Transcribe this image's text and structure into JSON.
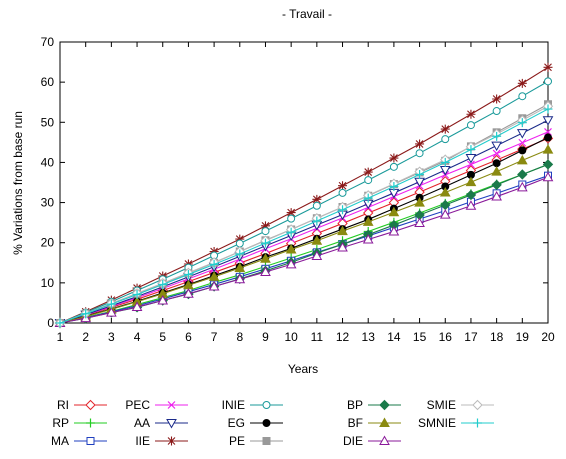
{
  "chart_data": {
    "type": "line",
    "title": "- Travail -",
    "xlabel": "Years",
    "ylabel": "% Variations from base run",
    "x": [
      1,
      2,
      3,
      4,
      5,
      6,
      7,
      8,
      9,
      10,
      11,
      12,
      13,
      14,
      15,
      16,
      17,
      18,
      19,
      20
    ],
    "xlim": [
      1,
      20
    ],
    "ylim": [
      0,
      70
    ],
    "yticks": [
      0,
      10,
      20,
      30,
      40,
      50,
      60,
      70
    ],
    "grid": false,
    "legend_position": "bottom",
    "series": [
      {
        "name": "RI",
        "color": "#e3242b",
        "marker": "diamond-open",
        "values": [
          0,
          1.9,
          3.9,
          5.9,
          8.1,
          10.3,
          12.6,
          14.9,
          17.3,
          19.8,
          22.3,
          24.8,
          27.4,
          30.0,
          32.6,
          35.3,
          38.0,
          40.6,
          43.3,
          46.0
        ]
      },
      {
        "name": "RP",
        "color": "#22cc22",
        "marker": "plus",
        "values": [
          0,
          1.4,
          2.9,
          4.6,
          6.3,
          8.1,
          10.1,
          12.0,
          14.1,
          16.2,
          18.3,
          20.5,
          22.8,
          25.1,
          27.4,
          29.8,
          32.2,
          34.6,
          37.0,
          39.5
        ]
      },
      {
        "name": "MA",
        "color": "#1f3fbf",
        "marker": "square-open",
        "values": [
          0,
          1.3,
          2.8,
          4.3,
          6.0,
          7.8,
          9.6,
          11.5,
          13.5,
          15.5,
          17.6,
          19.6,
          21.7,
          23.8,
          25.9,
          28.0,
          30.2,
          32.3,
          34.5,
          36.7
        ]
      },
      {
        "name": "PEC",
        "color": "#ee22ee",
        "marker": "cross",
        "values": [
          0,
          2.0,
          4.1,
          6.3,
          8.6,
          11.0,
          13.4,
          15.9,
          18.5,
          21.0,
          23.6,
          26.2,
          28.8,
          31.5,
          34.2,
          36.9,
          39.5,
          42.2,
          44.9,
          47.6
        ]
      },
      {
        "name": "AA",
        "color": "#1a2a8a",
        "marker": "triangle-down-open",
        "values": [
          0,
          2.1,
          4.3,
          6.6,
          9.0,
          11.5,
          14.0,
          16.6,
          19.2,
          21.8,
          24.4,
          27.0,
          29.7,
          32.4,
          35.2,
          38.1,
          41.1,
          44.2,
          47.3,
          50.5
        ]
      },
      {
        "name": "IIE",
        "color": "#8b1a1a",
        "marker": "star",
        "values": [
          0,
          2.8,
          5.7,
          8.7,
          11.7,
          14.7,
          17.8,
          20.9,
          24.2,
          27.5,
          30.8,
          34.2,
          37.6,
          41.1,
          44.6,
          48.3,
          52.0,
          55.8,
          59.7,
          63.7
        ]
      },
      {
        "name": "INIE",
        "color": "#1a9a9a",
        "marker": "circle-open",
        "values": [
          0,
          2.6,
          5.3,
          8.1,
          10.9,
          13.8,
          16.8,
          19.8,
          22.9,
          26.0,
          29.2,
          32.4,
          35.6,
          38.9,
          42.3,
          45.8,
          49.3,
          52.8,
          56.5,
          60.2
        ]
      },
      {
        "name": "EG",
        "color": "#000000",
        "marker": "circle-filled",
        "values": [
          0,
          1.7,
          3.5,
          5.4,
          7.5,
          9.6,
          11.8,
          14.0,
          16.4,
          18.6,
          21.0,
          23.4,
          25.8,
          28.5,
          31.2,
          34.0,
          36.9,
          39.8,
          43.0,
          46.2
        ]
      },
      {
        "name": "PE",
        "color": "#999999",
        "marker": "square-filled",
        "values": [
          0,
          2.3,
          4.8,
          7.3,
          9.8,
          12.4,
          15.0,
          17.8,
          20.6,
          23.3,
          26.1,
          28.9,
          31.7,
          34.6,
          37.5,
          40.4,
          44.0,
          47.5,
          51.0,
          54.5
        ]
      },
      {
        "name": "BP",
        "color": "#1a7a4a",
        "marker": "diamond-filled",
        "values": [
          0,
          1.2,
          2.6,
          3.9,
          5.6,
          7.2,
          9.1,
          11.0,
          13.0,
          15.1,
          17.4,
          19.6,
          22.0,
          24.4,
          26.9,
          29.4,
          31.9,
          34.4,
          37.0,
          39.5
        ]
      },
      {
        "name": "BF",
        "color": "#8a8a10",
        "marker": "triangle-filled",
        "values": [
          0,
          1.6,
          3.4,
          5.3,
          7.3,
          9.4,
          11.5,
          13.7,
          16.0,
          18.3,
          20.5,
          22.9,
          25.2,
          27.6,
          30.0,
          32.5,
          35.1,
          37.7,
          40.5,
          43.2
        ]
      },
      {
        "name": "DIE",
        "color": "#8a1a9a",
        "marker": "triangle-open",
        "values": [
          0,
          1.2,
          2.6,
          4.0,
          5.6,
          7.3,
          9.1,
          10.9,
          12.7,
          14.6,
          16.7,
          18.8,
          20.8,
          22.8,
          24.9,
          27.0,
          29.2,
          31.5,
          33.8,
          36.3
        ]
      },
      {
        "name": "SMIE",
        "color": "#bbbbbb",
        "marker": "diamond-open",
        "values": [
          0,
          2.4,
          4.9,
          7.4,
          9.9,
          12.5,
          15.1,
          17.8,
          20.5,
          23.3,
          26.1,
          28.9,
          31.8,
          34.7,
          37.7,
          40.7,
          43.9,
          47.1,
          50.5,
          54.0
        ]
      },
      {
        "name": "SMNIE",
        "color": "#22cccc",
        "marker": "plus",
        "values": [
          0,
          2.3,
          4.7,
          7.1,
          9.6,
          12.1,
          14.6,
          17.2,
          19.9,
          22.6,
          25.4,
          28.2,
          31.1,
          34.0,
          37.0,
          40.0,
          43.2,
          46.5,
          49.9,
          53.3
        ]
      }
    ]
  }
}
